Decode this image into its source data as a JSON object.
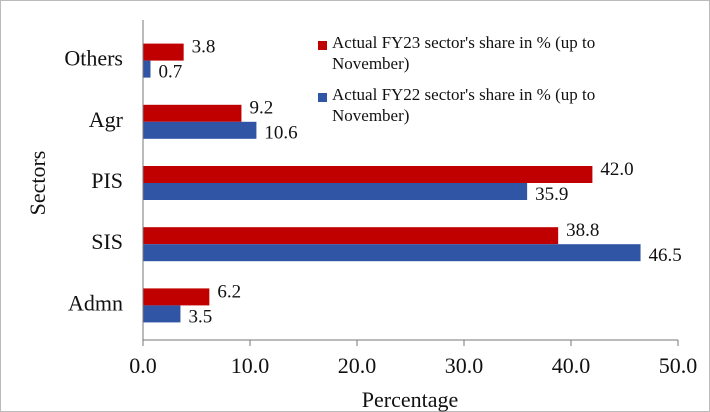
{
  "chart_data": {
    "type": "bar",
    "orientation": "horizontal",
    "categories": [
      "Others",
      "Agr",
      "PIS",
      "SIS",
      "Admn"
    ],
    "series": [
      {
        "name": "Actual FY23 sector's share in % (up to November)",
        "color": "#c00000",
        "values": [
          3.8,
          9.2,
          42.0,
          38.8,
          6.2
        ],
        "value_labels": [
          "3.8",
          "9.2",
          "42.0",
          "38.8",
          "6.2"
        ]
      },
      {
        "name": "Actual FY22 sector's share in % (up to November)",
        "color": "#2f55a4",
        "values": [
          0.7,
          10.6,
          35.9,
          46.5,
          3.5
        ],
        "value_labels": [
          "0.7",
          "10.6",
          "35.9",
          "46.5",
          "3.5"
        ]
      }
    ],
    "xlabel": "Percentage",
    "ylabel": "Sectors",
    "xlim": [
      0,
      50
    ],
    "xticks": [
      {
        "value": 0,
        "label": "0.0"
      },
      {
        "value": 10,
        "label": "10.0"
      },
      {
        "value": 20,
        "label": "20.0"
      },
      {
        "value": 30,
        "label": "30.0"
      },
      {
        "value": 40,
        "label": "40.0"
      },
      {
        "value": 50,
        "label": "50.0"
      }
    ],
    "legend": "upper right",
    "grid": false
  }
}
